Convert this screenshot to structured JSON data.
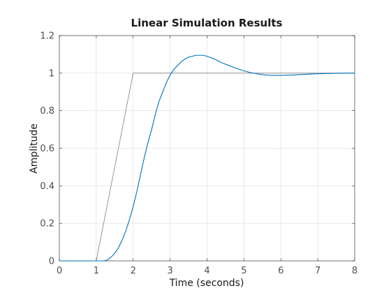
{
  "chart_data": {
    "type": "line",
    "title": "Linear Simulation Results",
    "xlabel": "Time (seconds)",
    "ylabel": "Amplitude",
    "xlim": [
      0,
      8
    ],
    "ylim": [
      0,
      1.2
    ],
    "xticks": [
      0,
      1,
      2,
      3,
      4,
      5,
      6,
      7,
      8
    ],
    "yticks": [
      0,
      0.2,
      0.4,
      0.6,
      0.8,
      1,
      1.2
    ],
    "xtick_labels": [
      "0",
      "1",
      "2",
      "3",
      "4",
      "5",
      "6",
      "7",
      "8"
    ],
    "ytick_labels": [
      "0",
      "0.2",
      "0.4",
      "0.6",
      "0.8",
      "1",
      "1.2"
    ],
    "grid": true,
    "series": [
      {
        "color": "#808080",
        "points": [
          [
            0,
            0
          ],
          [
            1,
            0
          ],
          [
            2,
            1
          ],
          [
            8,
            1
          ]
        ]
      },
      {
        "color": "#0072bd",
        "points": [
          [
            0,
            0
          ],
          [
            1.0,
            0
          ],
          [
            1.2,
            0.0
          ],
          [
            1.3,
            0.005
          ],
          [
            1.4,
            0.02
          ],
          [
            1.5,
            0.04
          ],
          [
            1.6,
            0.07
          ],
          [
            1.7,
            0.11
          ],
          [
            1.8,
            0.16
          ],
          [
            1.9,
            0.22
          ],
          [
            2.0,
            0.29
          ],
          [
            2.1,
            0.37
          ],
          [
            2.2,
            0.46
          ],
          [
            2.3,
            0.55
          ],
          [
            2.4,
            0.63
          ],
          [
            2.5,
            0.7
          ],
          [
            2.6,
            0.78
          ],
          [
            2.7,
            0.85
          ],
          [
            2.8,
            0.9
          ],
          [
            2.9,
            0.95
          ],
          [
            3.0,
            0.99
          ],
          [
            3.1,
            1.02
          ],
          [
            3.2,
            1.04
          ],
          [
            3.3,
            1.06
          ],
          [
            3.4,
            1.075
          ],
          [
            3.5,
            1.085
          ],
          [
            3.6,
            1.09
          ],
          [
            3.7,
            1.095
          ],
          [
            3.8,
            1.095
          ],
          [
            3.9,
            1.095
          ],
          [
            4.0,
            1.09
          ],
          [
            4.2,
            1.075
          ],
          [
            4.4,
            1.055
          ],
          [
            4.6,
            1.04
          ],
          [
            4.8,
            1.025
          ],
          [
            5.0,
            1.012
          ],
          [
            5.2,
            1.002
          ],
          [
            5.4,
            0.995
          ],
          [
            5.6,
            0.99
          ],
          [
            5.8,
            0.988
          ],
          [
            6.0,
            0.988
          ],
          [
            6.3,
            0.99
          ],
          [
            6.6,
            0.993
          ],
          [
            7.0,
            0.997
          ],
          [
            7.5,
            0.999
          ],
          [
            8.0,
            1.0
          ]
        ]
      }
    ]
  }
}
